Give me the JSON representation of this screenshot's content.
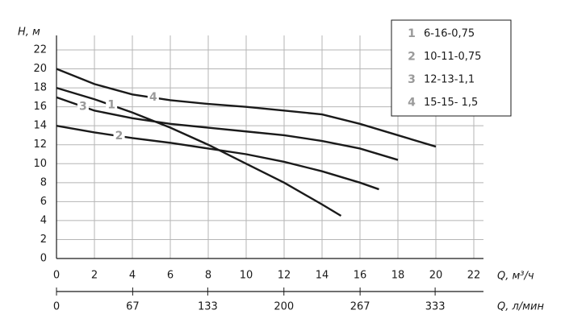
{
  "chart_data": {
    "type": "line",
    "y_label": "H, м",
    "x_label": "Q, м³/ч",
    "x2_label": "Q, л/мин",
    "xlim": [
      0,
      22
    ],
    "xticks": [
      0,
      2,
      4,
      6,
      8,
      10,
      12,
      14,
      16,
      18,
      20,
      22
    ],
    "x2lim": [
      0,
      367
    ],
    "x2ticks": [
      0,
      67,
      133,
      200,
      267,
      333
    ],
    "ylim": [
      0,
      22
    ],
    "yticks": [
      0,
      2,
      4,
      6,
      8,
      10,
      12,
      14,
      16,
      18,
      20,
      22
    ],
    "grid": true,
    "legend": "upper right",
    "series": [
      {
        "label": "1",
        "name": "6-16-0,75",
        "color": "#1a1a1a",
        "x": [
          0,
          2,
          4,
          6,
          8,
          10,
          12,
          14,
          15
        ],
        "values": [
          18,
          16.8,
          15.4,
          13.8,
          12,
          10,
          8,
          5.7,
          4.5
        ],
        "label_at": [
          2.9,
          16.2
        ]
      },
      {
        "label": "2",
        "name": "10-11-0,75",
        "color": "#1a1a1a",
        "x": [
          0,
          2,
          4,
          6,
          8,
          10,
          12,
          14,
          16,
          17
        ],
        "values": [
          14,
          13.3,
          12.7,
          12.2,
          11.6,
          11,
          10.2,
          9.2,
          8,
          7.3
        ],
        "label_at": [
          3.3,
          12.9
        ]
      },
      {
        "label": "3",
        "name": "12-13-1,1",
        "color": "#1a1a1a",
        "x": [
          0,
          2,
          4,
          6,
          8,
          10,
          12,
          14,
          16,
          18
        ],
        "values": [
          17,
          15.6,
          14.8,
          14.2,
          13.8,
          13.4,
          13,
          12.4,
          11.6,
          10.4
        ],
        "label_at": [
          1.4,
          16
        ]
      },
      {
        "label": "4",
        "name": "15-15- 1,5",
        "color": "#1a1a1a",
        "x": [
          0,
          2,
          4,
          6,
          8,
          10,
          12,
          14,
          16,
          18,
          20
        ],
        "values": [
          20,
          18.4,
          17.3,
          16.7,
          16.3,
          16,
          15.6,
          15.2,
          14.2,
          13,
          11.8
        ],
        "label_at": [
          5.1,
          17
        ]
      }
    ]
  }
}
